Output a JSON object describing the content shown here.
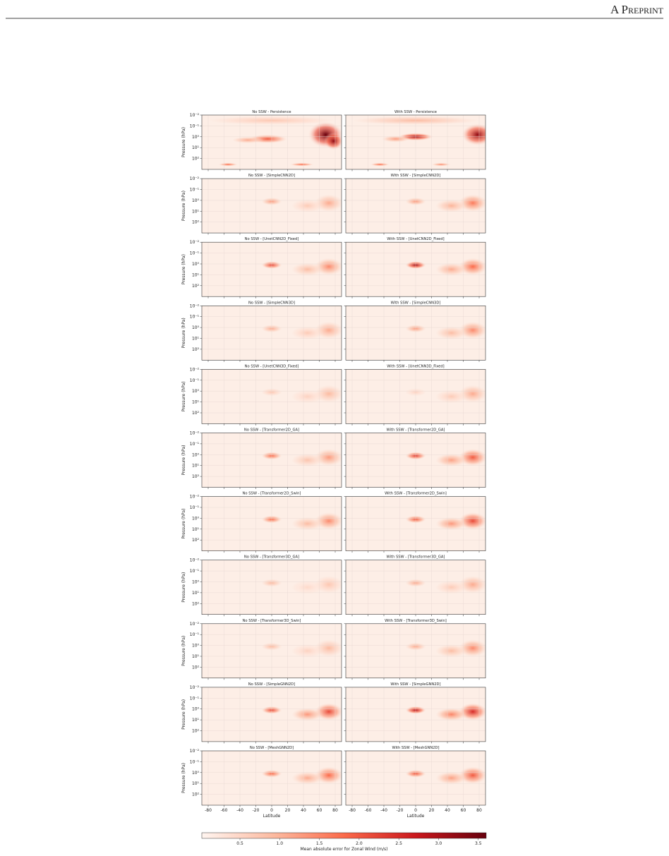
{
  "header": {
    "running_title": "A Preprint"
  },
  "figure": {
    "panels": [
      {
        "title": "No SSW - Persistence"
      },
      {
        "title": "With SSW - Persistence"
      },
      {
        "title": "No SSW - [SimpleCNN2D]"
      },
      {
        "title": "With SSW - [SimpleCNN2D]"
      },
      {
        "title": "No SSW - [UnetCNN2D_Fixed]"
      },
      {
        "title": "With SSW - [UnetCNN2D_Fixed]"
      },
      {
        "title": "No SSW - [SimpleCNN3D]"
      },
      {
        "title": "With SSW - [SimpleCNN3D]"
      },
      {
        "title": "No SSW - [UnetCNN3D_Fixed]"
      },
      {
        "title": "With SSW - [UnetCNN3D_Fixed]"
      },
      {
        "title": "No SSW - [Transformer2D_GA]"
      },
      {
        "title": "With SSW - [Transformer2D_GA]"
      },
      {
        "title": "No SSW - [Transformer2D_Swin]"
      },
      {
        "title": "With SSW - [Transformer2D_Swin]"
      },
      {
        "title": "No SSW - [Transformer3D_GA]"
      },
      {
        "title": "With SSW - [Transformer3D_GA]"
      },
      {
        "title": "No SSW - [Transformer3D_Swin]"
      },
      {
        "title": "With SSW - [Transformer3D_Swin]"
      },
      {
        "title": "No SSW - [SimpleGNN2D]"
      },
      {
        "title": "With SSW - [SimpleGNN2D]"
      },
      {
        "title": "No SSW - [MeshGNN2D]"
      },
      {
        "title": "With SSW - [MeshGNN2D]"
      }
    ],
    "y_axis_label": "Pressure (hPa)",
    "x_axis_label": "Latitude",
    "xlim": [
      -88,
      88
    ],
    "xticks": [
      -80,
      -60,
      -40,
      -20,
      0,
      20,
      40,
      60,
      80
    ],
    "ylim": [
      0.01,
      1000
    ],
    "y_log_scale": true,
    "yticks": [
      {
        "value": 0.01,
        "label": "10⁻²"
      },
      {
        "value": 0.1,
        "label": "10⁻¹"
      },
      {
        "value": 1,
        "label": "10⁰"
      },
      {
        "value": 10,
        "label": "10¹"
      },
      {
        "value": 100,
        "label": "10²"
      }
    ],
    "colorbar": {
      "label": "Mean absolute error for Zonal Wind (m/s)",
      "lim": [
        0.02,
        3.6
      ],
      "ticks": [
        0.5,
        {
          "value": 1,
          "label": "1.0"
        },
        1.5,
        {
          "value": 2,
          "label": "2.0"
        },
        2.5,
        {
          "value": 3,
          "label": "3.0"
        },
        3.5
      ]
    }
  }
}
